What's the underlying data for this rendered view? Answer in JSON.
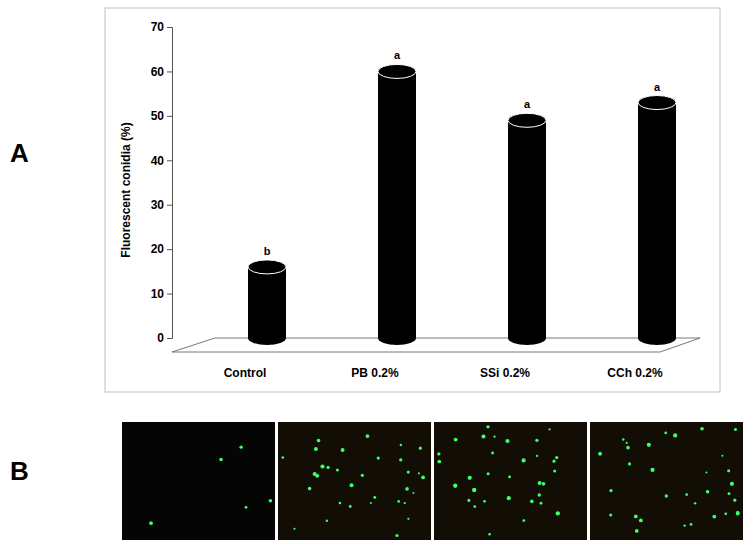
{
  "chart_data": {
    "type": "bar",
    "y_label": "Fluorescent conidia (%)",
    "categories": [
      "Control",
      "PB 0.2%",
      "SSi 0.2%",
      "CCh 0.2%"
    ],
    "values": [
      16,
      60,
      49,
      53
    ],
    "annotations": [
      "b",
      "a",
      "a",
      "a"
    ],
    "color": "#000000",
    "ylim": [
      0,
      70
    ],
    "yticks": [
      0,
      10,
      20,
      30,
      40,
      50,
      60,
      70
    ],
    "grid": false
  },
  "panels": [
    "A",
    "B"
  ]
}
